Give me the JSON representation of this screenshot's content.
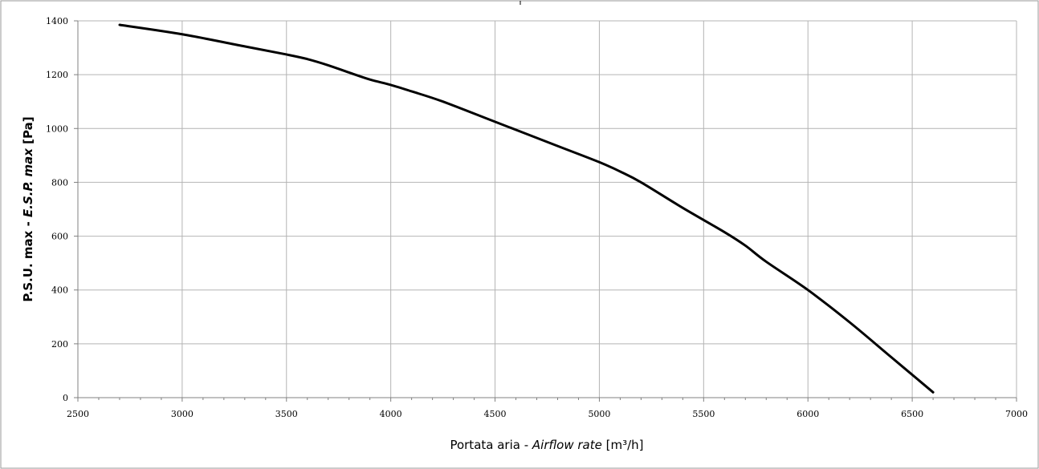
{
  "chart_data": {
    "type": "line",
    "xlabel": {
      "prefix": "Portata aria - ",
      "italic": "Airflow rate",
      "suffix": " [m³/h]"
    },
    "ylabel": {
      "prefix": "P.S.U. max - ",
      "italic": "E.S.P. max",
      "suffix": " [Pa]"
    },
    "xlim": [
      2500,
      7000
    ],
    "ylim": [
      0,
      1400
    ],
    "x_ticks": [
      2500,
      3000,
      3500,
      4000,
      4500,
      5000,
      5500,
      6000,
      6500,
      7000
    ],
    "y_ticks": [
      0,
      200,
      400,
      600,
      800,
      1000,
      1200,
      1400
    ],
    "grid": true,
    "legend": "none",
    "series": [
      {
        "color": "#000000",
        "x": [
          2700,
          3000,
          3300,
          3500,
          3600,
          3700,
          3800,
          3900,
          4000,
          4100,
          4250,
          4500,
          4800,
          5000,
          5100,
          5200,
          5400,
          5600,
          5700,
          5800,
          6000,
          6200,
          6400,
          6600
        ],
        "y": [
          1385,
          1350,
          1305,
          1275,
          1258,
          1235,
          1208,
          1182,
          1162,
          1138,
          1100,
          1025,
          935,
          875,
          840,
          800,
          705,
          615,
          565,
          505,
          400,
          280,
          150,
          20
        ]
      }
    ]
  }
}
